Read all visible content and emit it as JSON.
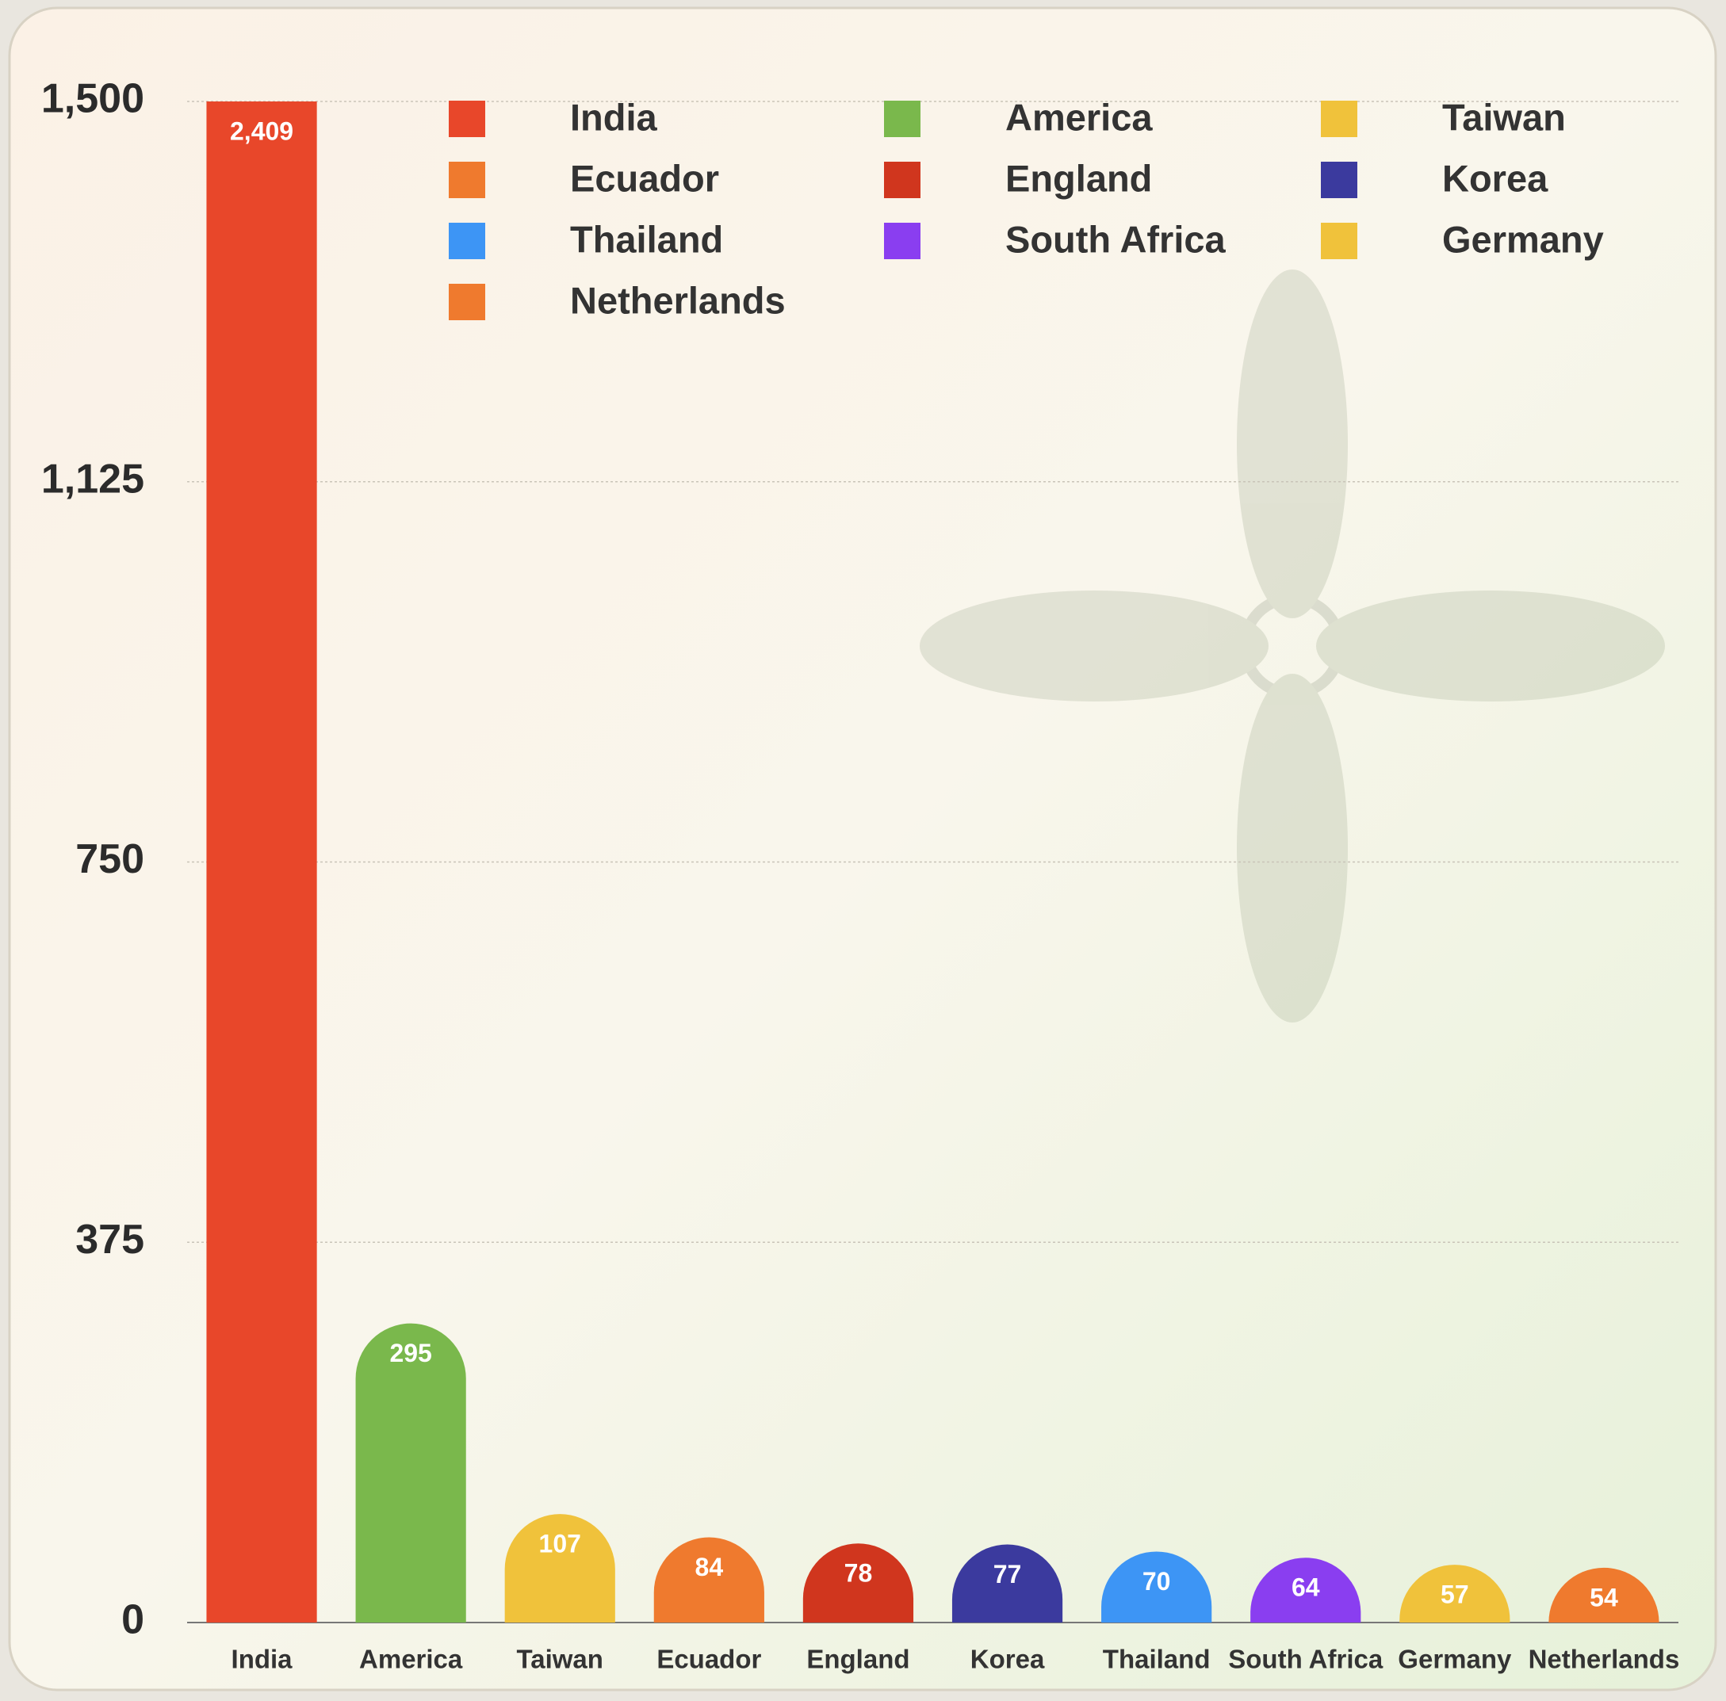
{
  "chart_data": {
    "type": "bar",
    "categories": [
      "India",
      "America",
      "Taiwan",
      "Ecuador",
      "England",
      "Korea",
      "Thailand",
      "South Africa",
      "Germany",
      "Netherlands"
    ],
    "values": [
      2409,
      295,
      107,
      84,
      78,
      77,
      70,
      64,
      57,
      54
    ],
    "value_labels": [
      "2,409",
      "295",
      "107",
      "84",
      "78",
      "77",
      "70",
      "64",
      "57",
      "54"
    ],
    "colors": [
      "#e8472a",
      "#7ab84c",
      "#f0c23b",
      "#ef7a2e",
      "#d0361e",
      "#3b3a9e",
      "#3d95f5",
      "#8a3ef0",
      "#f0c23b",
      "#ef7a2e"
    ],
    "ylim": [
      0,
      1500
    ],
    "yticks": [
      0,
      375,
      750,
      {
        "value": 1125,
        "label": "1,125"
      },
      {
        "value": 1500,
        "label": "1,500"
      }
    ],
    "grid": true,
    "legend": "top",
    "legend_columns": 3
  }
}
